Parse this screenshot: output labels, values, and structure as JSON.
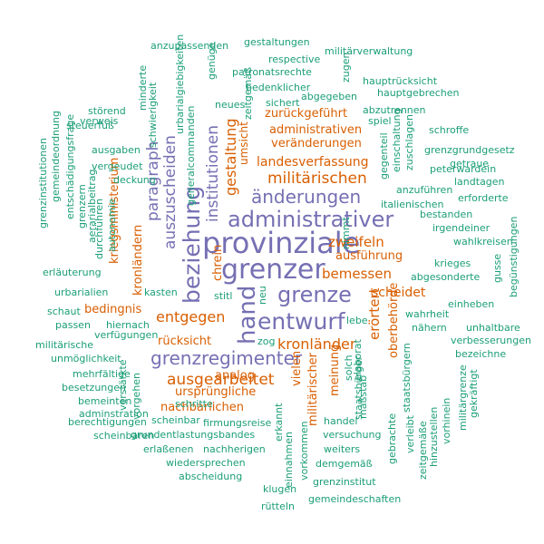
{
  "colors": {
    "purple": "#7570b3",
    "orange": "#d95f02",
    "teal": "#1b9e77"
  },
  "words": {
    "w000": "provinziale",
    "w001": "grenzer",
    "w002": "administrativer",
    "w003": "entwurf",
    "w004": "hand",
    "w005": "beziehung",
    "w006": "grenze",
    "w007": "grenzregimenter",
    "w008": "änderungen",
    "w009": "auszuscheiden",
    "w010": "institutionen",
    "w011": "paragraph",
    "w012": "ausgearbeitet",
    "w013": "gestaltung",
    "w014": "kronländer",
    "w015": "erörtert",
    "w016": "entgegen",
    "w017": "militärischen",
    "w018": "bemessen",
    "w019": "scheidet",
    "w020": "zweifeln",
    "w021": "landesverfassung",
    "w022": "veränderungen",
    "w023": "administrativen",
    "w024": "zurückgeführt",
    "w025": "ausführung",
    "w026": "bedingnis",
    "w027": "rücksicht",
    "w028": "nachbarlichen",
    "w029": "ursprüngliche",
    "w030": "analog",
    "w031": "vielen",
    "w032": "meinung",
    "w033": "militärischer",
    "w034": "oberbehörde",
    "w035": "kriegsministerium",
    "w036": "kronländern",
    "w037": "chrein",
    "w038": "umsicht",
    "w039": "anzupassenden",
    "w040": "gestaltungen",
    "w041": "militärverwaltung",
    "w042": "respective",
    "w043": "patronatsrechte",
    "w044": "hauptrücksicht",
    "w045": "bedenklicher",
    "w046": "abgegeben",
    "w047": "hauptgebrechen",
    "w048": "sichert",
    "w049": "neues",
    "w050": "abzutrennen",
    "w051": "spiel",
    "w052": "schroffe",
    "w053": "grenzgrundgesetz",
    "w054": "getraue",
    "w055": "peterwardein",
    "w056": "landtagen",
    "w057": "erforderte",
    "w058": "italienischen",
    "w059": "anzuführen",
    "w060": "bestanden",
    "w061": "irgendeiner",
    "w062": "wahlkreisen",
    "w063": "gusse",
    "w064": "begünstigungen",
    "w065": "abgesonderte",
    "w066": "krieges",
    "w067": "einheben",
    "w068": "wahrheit",
    "w069": "nähern",
    "w070": "unhaltbare",
    "w071": "verbesserungen",
    "w072": "bezeichne",
    "w073": "lebe",
    "w074": "zog",
    "w075": "stitl",
    "w076": "neu",
    "w077": "kasten",
    "w078": "erläuterung",
    "w079": "urbarialien",
    "w080": "schaut",
    "w081": "passen",
    "w082": "hiernach",
    "w083": "verfügungen",
    "w084": "militärische",
    "w085": "unmöglichkeit",
    "w086": "mehrfältige",
    "w087": "besetzungen",
    "w088": "bemeinten",
    "w089": "adminstration",
    "w090": "berechtigungen",
    "w091": "scheinbaren",
    "w092": "scheinbar",
    "w093": "firmungsreise",
    "w094": "schritte",
    "w095": "grundentlastungsbandes",
    "w096": "erlaßenen",
    "w097": "nachherigen",
    "w098": "wiedersprechen",
    "w099": "abscheidung",
    "w100": "klugen",
    "w101": "gemeindeschaften",
    "w102": "rütteln",
    "w103": "grenzinstitut",
    "w104": "demgemäß",
    "w105": "weiters",
    "w106": "versuchung",
    "w107": "handel",
    "w108": "störend",
    "w109": "verweis",
    "w110": "steuerfuß",
    "w111": "ausgaben",
    "w112": "vergeudet",
    "w113": "deckung",
    "w114": "grenzinstitutionen",
    "w115": "gemeindeordnung",
    "w116": "entschädigungsfrage",
    "w117": "grenzern",
    "w118": "aerarialbeitrag",
    "w119": "durchführen",
    "w120": "autonomie",
    "w121": "minderte",
    "w122": "schwierigkeit",
    "w123": "urbarialgiebigkeiten",
    "w124": "generalcommanden",
    "w125": "genüge",
    "w126": "zeitgemäß",
    "w127": "zugen",
    "w128": "nimmt",
    "w129": "gegenteil",
    "w130": "einschaltung",
    "w131": "zuschlagen",
    "w132": "staatsbürger",
    "w133": "maßstab",
    "w134": "elaborat",
    "w135": "solch",
    "w136": "gebrachte",
    "w137": "staatsbürgern",
    "w138": "verleibt",
    "w139": "zeitgemäße",
    "w140": "hinzustellen",
    "w141": "vorhinein",
    "w142": "militärgrenze",
    "w143": "gekräftigt",
    "w144": "vorkommen",
    "w145": "einnahmen",
    "w146": "erkannt",
    "w147": "verstärkte",
    "w148": "vorgehen"
  }
}
